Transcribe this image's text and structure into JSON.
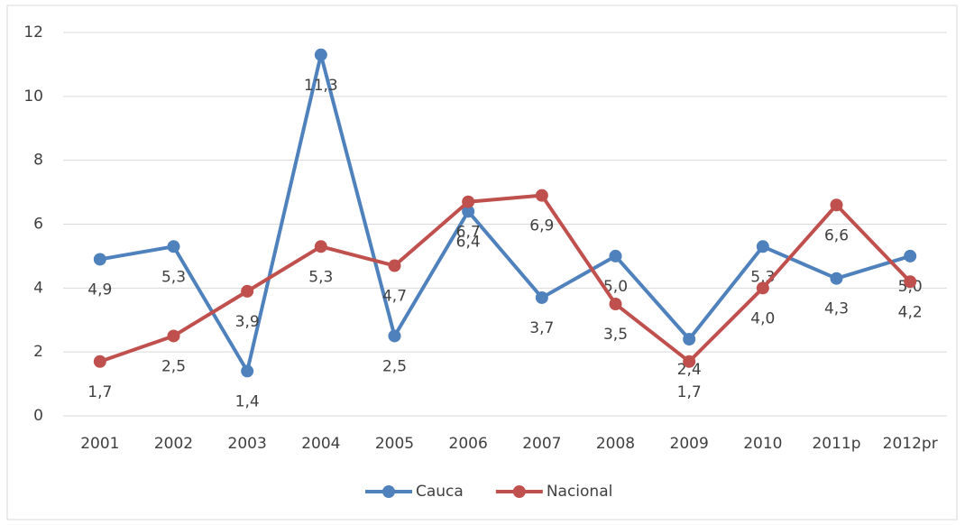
{
  "chart_data": {
    "type": "line",
    "categories": [
      "2001",
      "2002",
      "2003",
      "2004",
      "2005",
      "2006",
      "2007",
      "2008",
      "2009",
      "2010",
      "2011p",
      "2012pr"
    ],
    "series": [
      {
        "name": "Cauca",
        "color": "#4f81bd",
        "values": [
          4.9,
          5.3,
          1.4,
          11.3,
          2.5,
          6.4,
          3.7,
          5.0,
          2.4,
          5.3,
          4.3,
          5.0
        ],
        "value_labels": [
          "4,9",
          "5,3",
          "1,4",
          "11,3",
          "2,5",
          "6,4",
          "3,7",
          "5,0",
          "2,4",
          "5,3",
          "4,3",
          "5,0"
        ]
      },
      {
        "name": "Nacional",
        "color": "#c0504d",
        "values": [
          1.7,
          2.5,
          3.9,
          5.3,
          4.7,
          6.7,
          6.9,
          3.5,
          1.7,
          4.0,
          6.6,
          4.2
        ],
        "value_labels": [
          "1,7",
          "2,5",
          "3,9",
          "5,3",
          "4,7",
          "6,7",
          "6,9",
          "3,5",
          "1,7",
          "4,0",
          "6,6",
          "4,2"
        ]
      }
    ],
    "ylim": [
      0,
      12
    ],
    "yticks": [
      0,
      2,
      4,
      6,
      8,
      10,
      12
    ],
    "grid": true,
    "legend": "bottom"
  }
}
